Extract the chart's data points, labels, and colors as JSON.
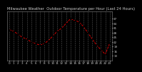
{
  "title": "Milwaukee Weather  Outdoor Temperature per Hour (Last 24 Hours)",
  "hours": [
    0,
    1,
    2,
    3,
    4,
    5,
    6,
    7,
    8,
    9,
    10,
    11,
    12,
    13,
    14,
    15,
    16,
    17,
    18,
    19,
    20,
    21,
    22,
    23
  ],
  "temps": [
    30,
    29,
    27,
    25,
    24,
    22,
    21,
    20,
    21,
    23,
    26,
    29,
    31,
    34,
    37,
    36,
    35,
    32,
    28,
    24,
    20,
    17,
    14,
    21
  ],
  "line_color": "#ff0000",
  "marker_color": "#000000",
  "plot_bg": "#000000",
  "fig_bg": "#000000",
  "title_fg": "#cccccc",
  "grid_color": "#555555",
  "spine_color": "#888888",
  "ytick_color": "#cccccc",
  "xtick_color": "#cccccc",
  "ylim": [
    10,
    42
  ],
  "yticks": [
    13,
    16,
    19,
    22,
    25,
    28,
    31,
    34,
    37
  ],
  "title_fontsize": 3.8,
  "tick_fontsize": 3.0
}
